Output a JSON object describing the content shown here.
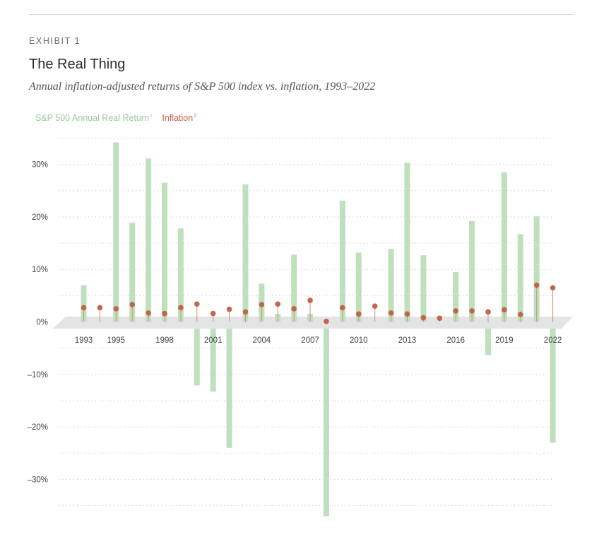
{
  "header": {
    "exhibit": "EXHIBIT 1",
    "title": "The Real Thing",
    "subtitle": "Annual inflation-adjusted returns of S&P 500 index vs. inflation, 1993–2022"
  },
  "legend": {
    "real_label": "S&P 500 Annual Real Return",
    "real_note": "1",
    "inflation_label": "Inflation",
    "inflation_note": "2"
  },
  "colors": {
    "real": "#bfe0bd",
    "inflation_dot": "#c2654a",
    "inflation_stem": "#d98b78",
    "floor": "#e4e4e4",
    "grid": "#c9c9c9",
    "text": "#444444"
  },
  "chart_data": {
    "type": "bar",
    "ylim": [
      -37,
      35
    ],
    "yticks": [
      30,
      20,
      10,
      0,
      -10,
      -20,
      -30
    ],
    "ytick_labels": [
      "30%",
      "20%",
      "10%",
      "0%",
      "–10%",
      "–20%",
      "–30%"
    ],
    "x_labels": [
      "1993",
      "1995",
      "1998",
      "2001",
      "2004",
      "2007",
      "2010",
      "2013",
      "2016",
      "2019",
      "2022"
    ],
    "x_label_years": [
      1993,
      1995,
      1998,
      2001,
      2004,
      2007,
      2010,
      2013,
      2016,
      2019,
      2022
    ],
    "grid": true,
    "legend_position": "top-left",
    "series": [
      {
        "name": "S&P 500 Annual Real Return",
        "x": [
          1993,
          1994,
          1995,
          1996,
          1997,
          1998,
          1999,
          2000,
          2001,
          2002,
          2003,
          2004,
          2005,
          2006,
          2007,
          2008,
          2009,
          2010,
          2011,
          2012,
          2013,
          2014,
          2015,
          2016,
          2017,
          2018,
          2019,
          2020,
          2021,
          2022
        ],
        "values": [
          7.0,
          -1.2,
          34.2,
          18.9,
          31.1,
          26.5,
          17.8,
          -12.1,
          -13.3,
          -24.0,
          26.2,
          7.3,
          1.5,
          12.8,
          1.5,
          -37.0,
          23.1,
          13.2,
          -0.9,
          13.9,
          30.3,
          12.7,
          -0.1,
          9.5,
          19.2,
          -6.3,
          28.5,
          16.7,
          20.1,
          -23.0
        ]
      },
      {
        "name": "Inflation",
        "x": [
          1993,
          1994,
          1995,
          1996,
          1997,
          1998,
          1999,
          2000,
          2001,
          2002,
          2003,
          2004,
          2005,
          2006,
          2007,
          2008,
          2009,
          2010,
          2011,
          2012,
          2013,
          2014,
          2015,
          2016,
          2017,
          2018,
          2019,
          2020,
          2021,
          2022
        ],
        "values": [
          2.7,
          2.7,
          2.5,
          3.3,
          1.7,
          1.6,
          2.7,
          3.4,
          1.6,
          2.4,
          1.9,
          3.3,
          3.4,
          2.5,
          4.1,
          0.1,
          2.7,
          1.5,
          3.0,
          1.7,
          1.5,
          0.8,
          0.7,
          2.1,
          2.1,
          1.9,
          2.3,
          1.4,
          7.0,
          6.5
        ]
      }
    ]
  }
}
